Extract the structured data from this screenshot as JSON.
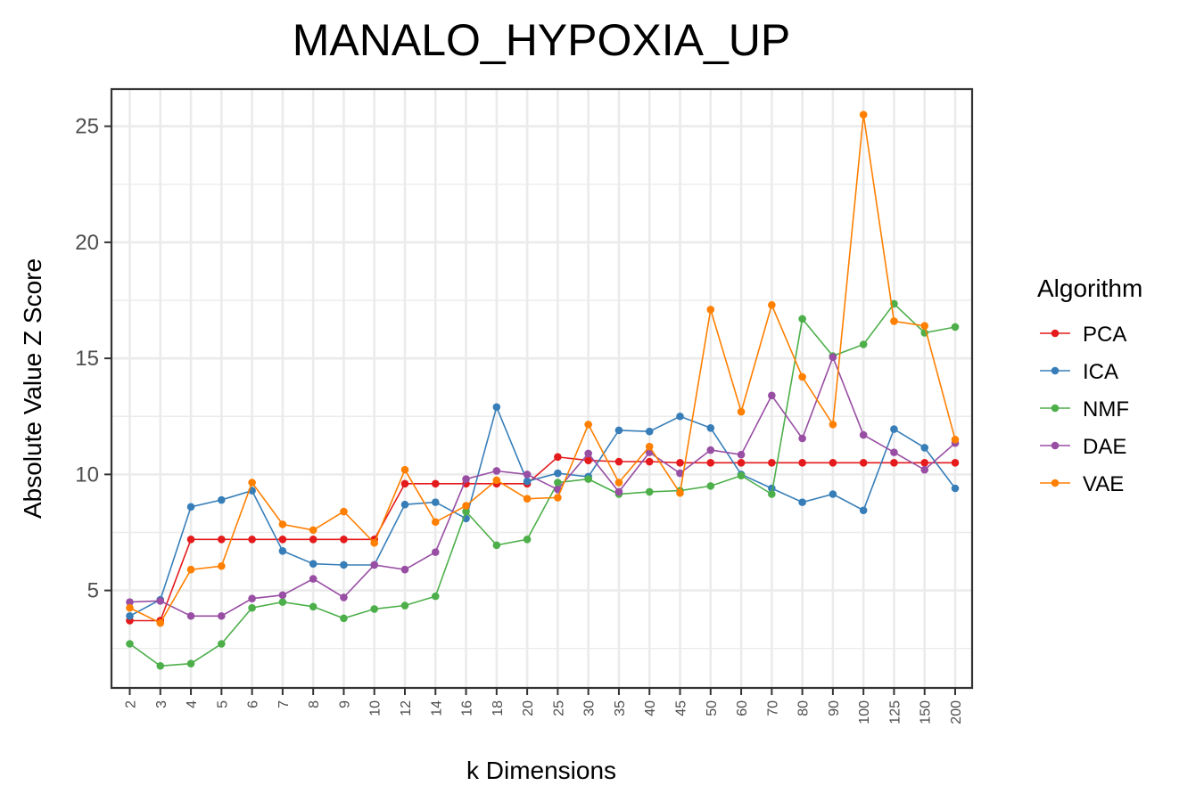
{
  "chart_data": {
    "type": "line",
    "title": "MANALO_HYPOXIA_UP",
    "xlabel": "k Dimensions",
    "ylabel": "Absolute Value Z Score",
    "categories": [
      "2",
      "3",
      "4",
      "5",
      "6",
      "7",
      "8",
      "9",
      "10",
      "12",
      "14",
      "16",
      "18",
      "20",
      "25",
      "30",
      "35",
      "40",
      "45",
      "50",
      "60",
      "70",
      "80",
      "90",
      "100",
      "125",
      "150",
      "200"
    ],
    "yticks": [
      5,
      10,
      15,
      20,
      25
    ],
    "ylim": [
      0.8,
      26.6
    ],
    "grid": true,
    "legend": {
      "title": "Algorithm",
      "position": "right"
    },
    "series": [
      {
        "name": "PCA",
        "color": "#E41A1C",
        "values": [
          3.7,
          3.7,
          7.2,
          7.2,
          7.2,
          7.2,
          7.2,
          7.2,
          7.2,
          9.6,
          9.6,
          9.6,
          9.6,
          9.6,
          10.75,
          10.6,
          10.55,
          10.55,
          10.5,
          10.5,
          10.5,
          10.5,
          10.5,
          10.5,
          10.5,
          10.5,
          10.5,
          10.5
        ]
      },
      {
        "name": "ICA",
        "color": "#377EB8",
        "values": [
          3.9,
          4.6,
          8.6,
          8.9,
          9.3,
          6.7,
          6.15,
          6.1,
          6.1,
          8.7,
          8.8,
          8.1,
          12.9,
          9.7,
          10.05,
          9.9,
          11.9,
          11.85,
          12.5,
          12.0,
          10.0,
          9.4,
          8.8,
          9.15,
          8.45,
          11.95,
          11.15,
          9.4
        ]
      },
      {
        "name": "NMF",
        "color": "#4DAF4A",
        "values": [
          2.7,
          1.75,
          1.85,
          2.7,
          4.25,
          4.5,
          4.3,
          3.8,
          4.2,
          4.35,
          4.75,
          8.4,
          6.95,
          7.2,
          9.65,
          9.8,
          9.15,
          9.25,
          9.3,
          9.5,
          9.95,
          9.15,
          16.7,
          15.1,
          15.6,
          17.35,
          16.1,
          16.35
        ]
      },
      {
        "name": "DAE",
        "color": "#984EA3",
        "values": [
          4.5,
          4.55,
          3.9,
          3.9,
          4.65,
          4.8,
          5.5,
          4.7,
          6.1,
          5.9,
          6.65,
          9.8,
          10.15,
          10.0,
          9.35,
          10.9,
          9.25,
          10.95,
          10.05,
          11.05,
          10.85,
          13.4,
          11.55,
          15.05,
          11.7,
          10.95,
          10.2,
          11.35
        ]
      },
      {
        "name": "VAE",
        "color": "#FF7F00",
        "values": [
          4.25,
          3.6,
          5.9,
          6.05,
          9.65,
          7.85,
          7.6,
          8.4,
          7.05,
          10.2,
          7.95,
          8.65,
          9.75,
          8.95,
          9.0,
          12.15,
          9.65,
          11.2,
          9.2,
          17.1,
          12.7,
          17.3,
          14.2,
          12.15,
          25.5,
          16.6,
          16.4,
          11.5
        ]
      }
    ]
  }
}
